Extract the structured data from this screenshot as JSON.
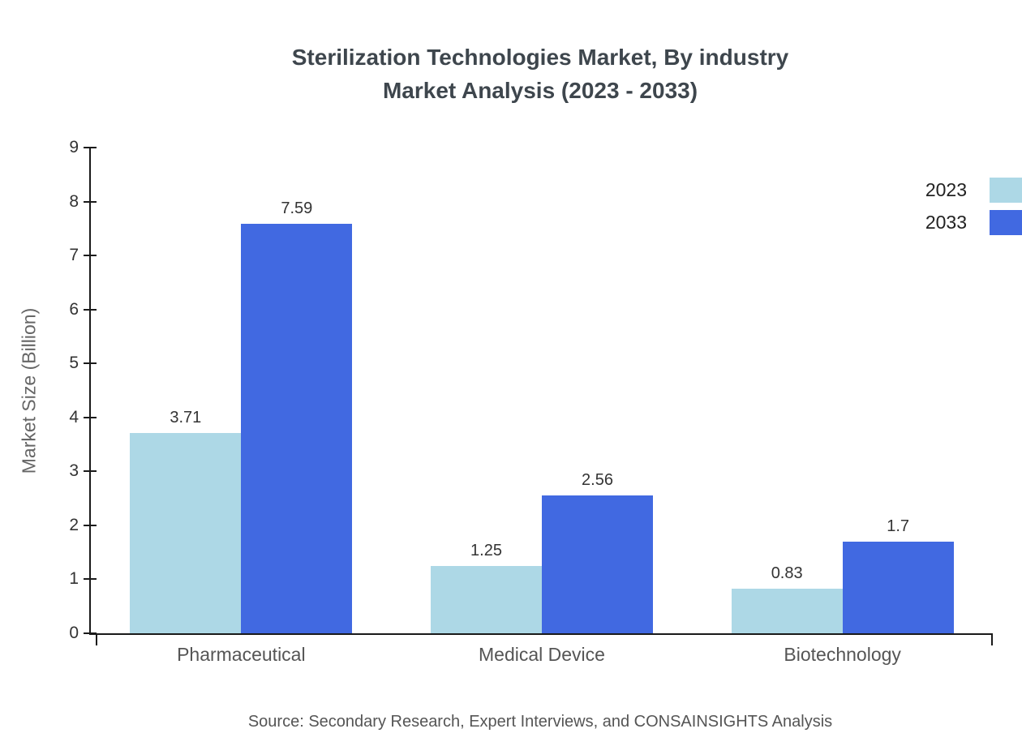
{
  "header": {
    "title_lines": [
      "Sterilization Technologies Market, By industry",
      "Market Analysis (2023 - 2033)"
    ]
  },
  "chart_data": {
    "type": "bar",
    "title": "Sterilization Technologies Market, By industry Market Analysis (2023 - 2033)",
    "categories": [
      "Pharmaceutical",
      "Medical Device",
      "Biotechnology"
    ],
    "series": [
      {
        "name": "2023",
        "color": "#ADD8E6",
        "values": [
          3.71,
          1.25,
          0.83
        ]
      },
      {
        "name": "2033",
        "color": "#4169E1",
        "values": [
          7.59,
          2.56,
          1.7
        ]
      }
    ],
    "xlabel": "",
    "ylabel": "Market Size (Billion)",
    "ylim": [
      0,
      9
    ],
    "yticks": [
      0,
      1,
      2,
      3,
      4,
      5,
      6,
      7,
      8,
      9
    ],
    "grid": false,
    "legend_position": "top-right",
    "value_labels": true
  },
  "footer": {
    "source": "Source: Secondary Research, Expert Interviews, and CONSAINSIGHTS Analysis"
  }
}
